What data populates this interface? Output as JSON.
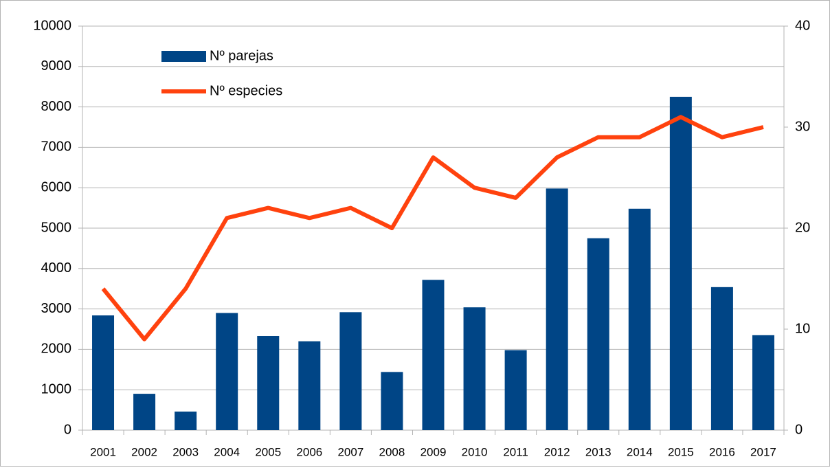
{
  "chart_data": {
    "type": "bar_line",
    "categories": [
      "2001",
      "2002",
      "2003",
      "2004",
      "2005",
      "2006",
      "2007",
      "2008",
      "2009",
      "2010",
      "2011",
      "2012",
      "2013",
      "2014",
      "2015",
      "2016",
      "2017"
    ],
    "series": [
      {
        "name": "Nº parejas",
        "type": "bar",
        "color": "#004586",
        "values": [
          2840,
          900,
          460,
          2900,
          2330,
          2200,
          2920,
          1440,
          3720,
          3040,
          1980,
          5980,
          4750,
          5480,
          8250,
          3540,
          2350
        ]
      },
      {
        "name": "Nº especies",
        "type": "line",
        "axis": "y2",
        "color": "#ff420e",
        "values": [
          14,
          9,
          14,
          21,
          22,
          21,
          22,
          20,
          27,
          24,
          23,
          27,
          29,
          29,
          31,
          29,
          30
        ]
      }
    ],
    "ylim": [
      0,
      10000
    ],
    "yticks": [
      0,
      1000,
      2000,
      3000,
      4000,
      5000,
      6000,
      7000,
      8000,
      9000,
      10000
    ],
    "y2lim": [
      0,
      40
    ],
    "y2ticks": [
      0,
      10,
      20,
      30,
      40
    ],
    "grid": true,
    "legend": "top-left"
  }
}
